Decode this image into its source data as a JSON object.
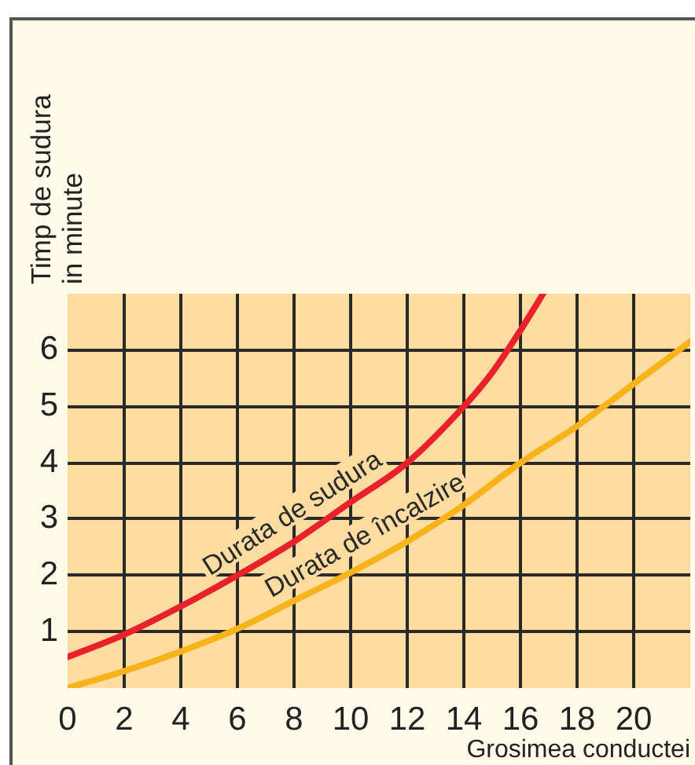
{
  "chart_data": {
    "type": "line",
    "xlabel": "Grosimea conductei",
    "ylabel": "Timp de sudura in minute",
    "series": [
      {
        "name": "Durata de sudura",
        "color": "#e8212b",
        "x": [
          0,
          2,
          4,
          6,
          8,
          10,
          12,
          14,
          15,
          16,
          16.8
        ],
        "values": [
          0.55,
          0.95,
          1.45,
          2.0,
          2.6,
          3.3,
          4.0,
          5.0,
          5.6,
          6.35,
          7.0
        ]
      },
      {
        "name": "Durata de încalzire",
        "color": "#f7b31a",
        "x": [
          0,
          2,
          4,
          6,
          8,
          10,
          12,
          14,
          16,
          18,
          20,
          22
        ],
        "values": [
          0,
          0.3,
          0.65,
          1.05,
          1.55,
          2.05,
          2.6,
          3.25,
          4.0,
          4.65,
          5.4,
          6.15
        ]
      }
    ],
    "xlim": [
      0,
      22
    ],
    "xticks": [
      0,
      2,
      4,
      6,
      8,
      10,
      12,
      14,
      16,
      18,
      20
    ],
    "ylim": [
      0,
      7
    ],
    "yticks": [
      1,
      2,
      3,
      4,
      5,
      6
    ],
    "grid": true,
    "legend": false,
    "marker": "none",
    "line_style": "solid"
  }
}
